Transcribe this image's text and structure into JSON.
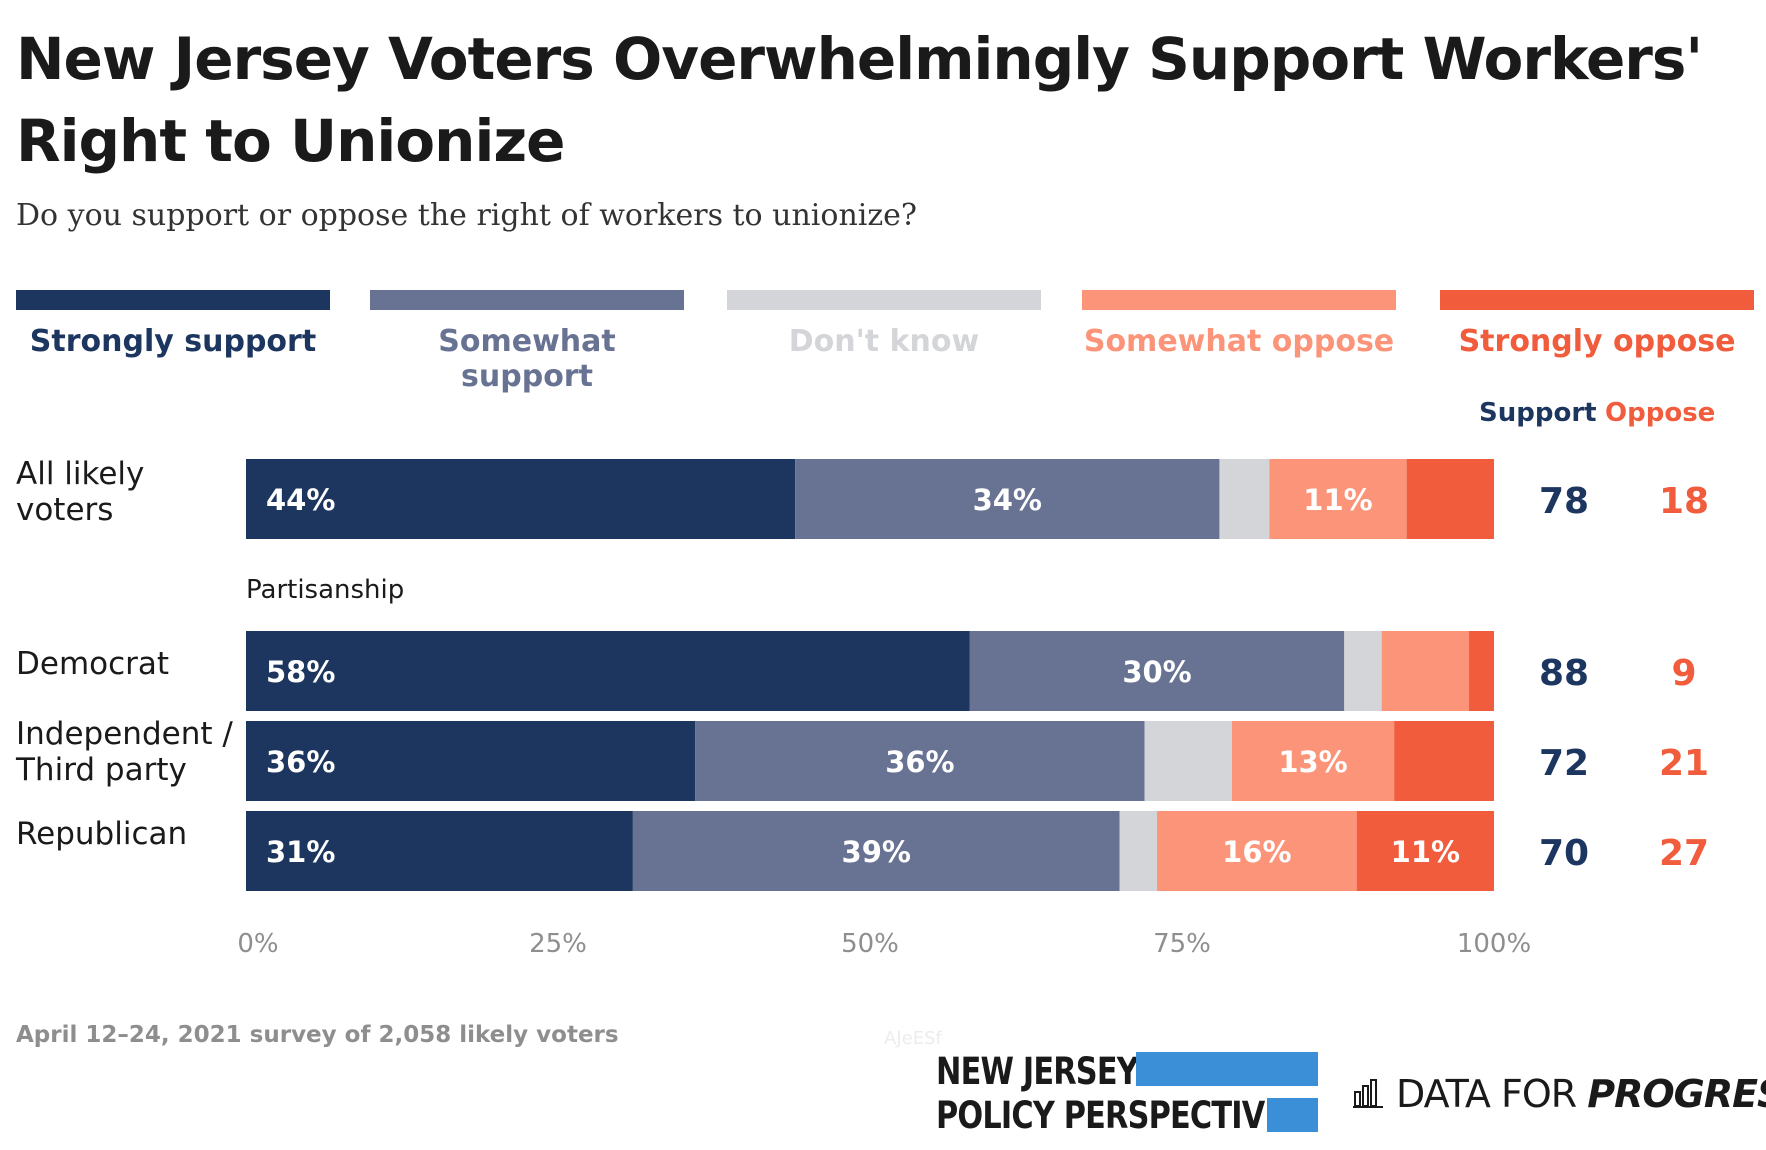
{
  "title": "New Jersey Voters Overwhelmingly Support Workers' Right to Unionize",
  "subtitle": "Do you support or oppose the right of workers to unionize?",
  "legend": [
    {
      "label": "Strongly support",
      "color": "#1c365f"
    },
    {
      "label": "Somewhat support",
      "color": "#687293"
    },
    {
      "label": "Don't know",
      "color": "#d4d5d8"
    },
    {
      "label": "Somewhat oppose",
      "color": "#fb9479"
    },
    {
      "label": "Strongly oppose",
      "color": "#f05c3c"
    }
  ],
  "columns": {
    "support": "Support",
    "oppose": "Oppose"
  },
  "group_label": "Partisanship",
  "footnote": "April 12–24, 2021 survey of 2,058 likely voters",
  "watermark": "AJeESf",
  "logos": {
    "njpp_line1": "NEW JERSEY",
    "njpp_line2": "POLICY PERSPECTIVE",
    "dfp_part1": "DATA FOR ",
    "dfp_part2": "PROGRESS"
  },
  "rows": [
    {
      "label_lines": [
        "All likely",
        "voters"
      ]
    },
    {
      "label_lines": [
        "Democrat"
      ]
    },
    {
      "label_lines": [
        "Independent /",
        "Third party"
      ]
    },
    {
      "label_lines": [
        "Republican"
      ]
    }
  ],
  "chart_data": {
    "type": "bar",
    "orientation": "horizontal",
    "stacked": true,
    "title": "New Jersey Voters Overwhelmingly Support Workers' Right to Unionize",
    "subtitle": "Do you support or oppose the right of workers to unionize?",
    "categories": [
      "All likely voters",
      "Democrat",
      "Independent / Third party",
      "Republican"
    ],
    "series": [
      {
        "name": "Strongly support",
        "color": "#1c365f",
        "values": [
          44,
          58,
          36,
          31
        ],
        "labels": [
          "44%",
          "58%",
          "36%",
          "31%"
        ]
      },
      {
        "name": "Somewhat support",
        "color": "#687293",
        "values": [
          34,
          30,
          36,
          39
        ],
        "labels": [
          "34%",
          "30%",
          "36%",
          "39%"
        ]
      },
      {
        "name": "Don't know",
        "color": "#d4d5d8",
        "values": [
          4,
          3,
          7,
          3
        ],
        "labels": [
          "",
          "",
          "",
          ""
        ]
      },
      {
        "name": "Somewhat oppose",
        "color": "#fb9479",
        "values": [
          11,
          7,
          13,
          16
        ],
        "labels": [
          "11%",
          "",
          "13%",
          "16%"
        ]
      },
      {
        "name": "Strongly oppose",
        "color": "#f05c3c",
        "values": [
          7,
          2,
          8,
          11
        ],
        "labels": [
          "",
          "",
          "",
          "11%"
        ]
      }
    ],
    "support_totals": [
      "78",
      "88",
      "72",
      "70"
    ],
    "oppose_totals": [
      "18",
      "9",
      "21",
      "27"
    ],
    "xlim": [
      0,
      100
    ],
    "xticks": [
      "0%",
      "25%",
      "50%",
      "75%",
      "100%"
    ],
    "grid": false,
    "legend": "top"
  }
}
